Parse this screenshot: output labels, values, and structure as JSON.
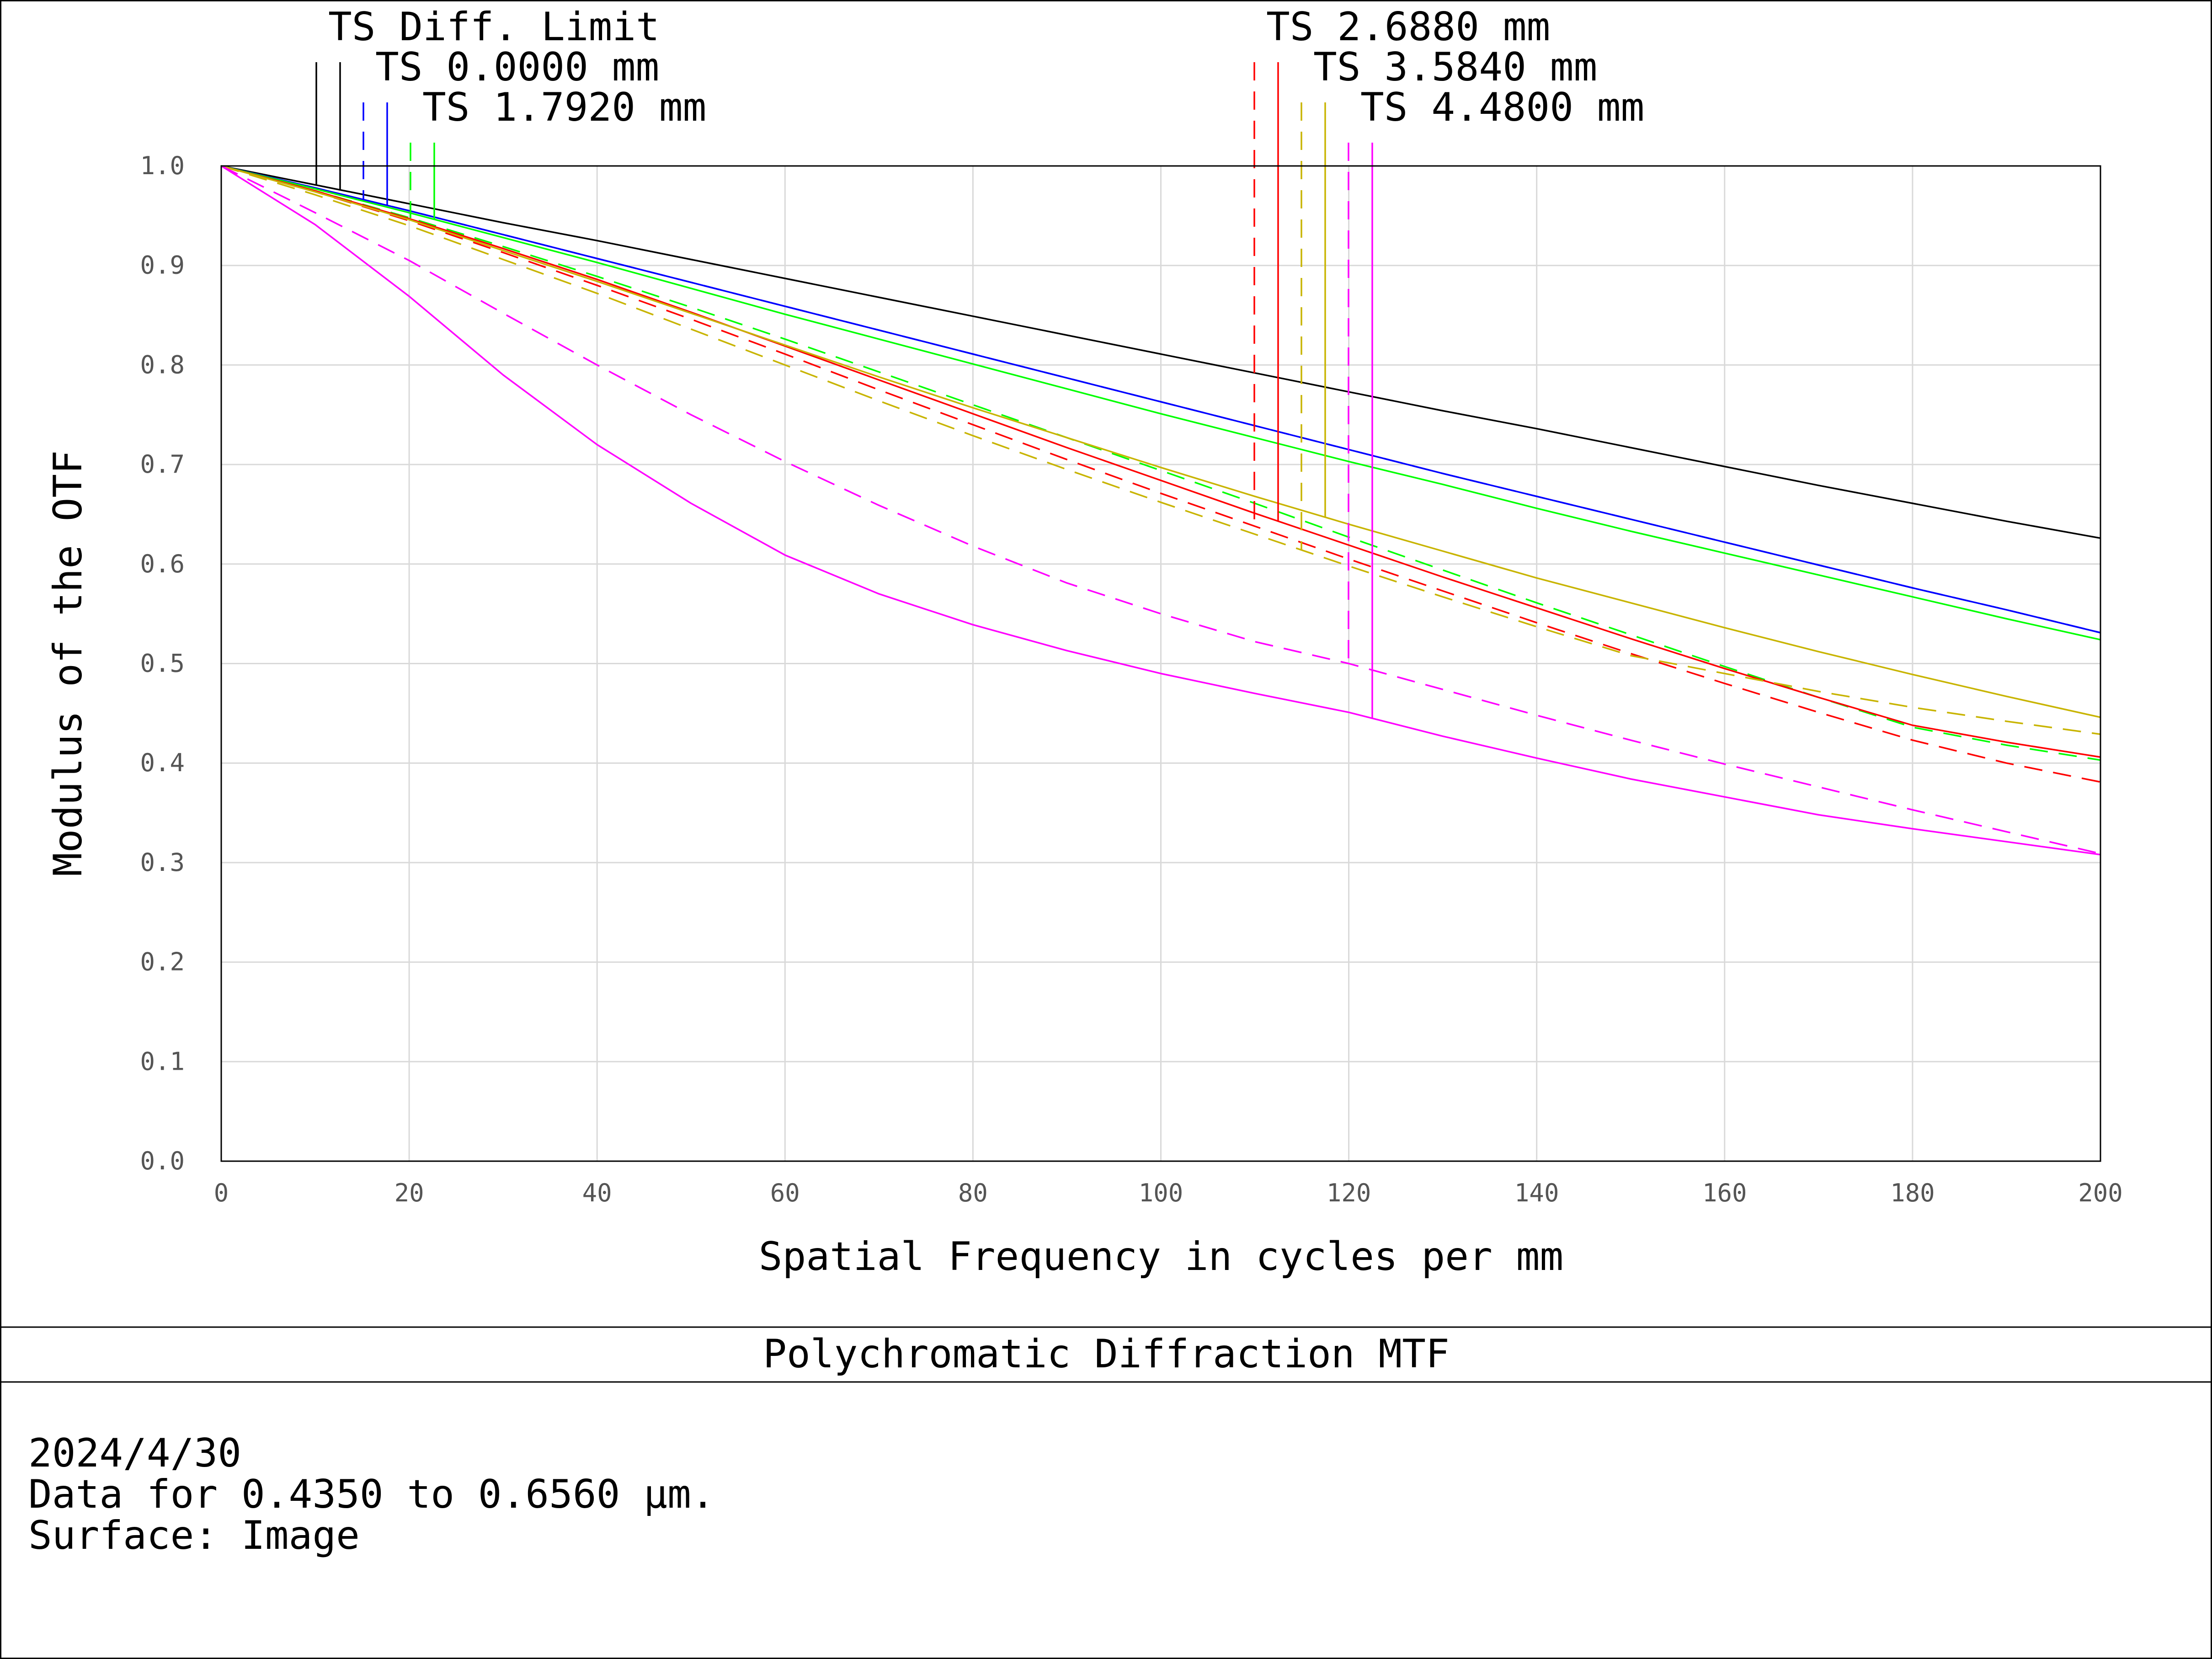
{
  "chart_data": {
    "type": "line",
    "title": "Polychromatic Diffraction MTF",
    "xlabel": "Spatial Frequency in cycles per mm",
    "ylabel": "Modulus of the OTF",
    "xlim": [
      0,
      200
    ],
    "ylim": [
      0,
      1.0
    ],
    "x_ticks": [
      "0",
      "20",
      "40",
      "60",
      "80",
      "100",
      "120",
      "140",
      "160",
      "180",
      "200"
    ],
    "y_ticks": [
      "0.0",
      "0.1",
      "0.2",
      "0.3",
      "0.4",
      "0.5",
      "0.6",
      "0.7",
      "0.8",
      "0.9",
      "1.0"
    ],
    "grid": true,
    "legend_placement": "top",
    "x": [
      0,
      10,
      20,
      30,
      40,
      50,
      60,
      70,
      80,
      90,
      100,
      110,
      120,
      130,
      140,
      150,
      160,
      170,
      180,
      190,
      200
    ],
    "series": [
      {
        "name": "TS Diff. Limit",
        "color": "#000000",
        "dash": "solid",
        "values": [
          1.0,
          0.981,
          0.962,
          0.943,
          0.925,
          0.906,
          0.887,
          0.868,
          0.849,
          0.83,
          0.811,
          0.792,
          0.773,
          0.754,
          0.736,
          0.717,
          0.698,
          0.679,
          0.661,
          0.643,
          0.626
        ]
      },
      {
        "name": "TS 0.0000 mm",
        "color": "#0000ff",
        "dash": "dashed",
        "values": [
          1.0,
          0.978,
          0.955,
          0.931,
          0.907,
          0.883,
          0.859,
          0.835,
          0.811,
          0.787,
          0.763,
          0.739,
          0.715,
          0.691,
          0.668,
          0.645,
          0.622,
          0.599,
          0.576,
          0.554,
          0.531
        ]
      },
      {
        "name": "TS 0.0000 mm",
        "color": "#0000ff",
        "dash": "solid",
        "values": [
          1.0,
          0.978,
          0.955,
          0.931,
          0.907,
          0.883,
          0.859,
          0.835,
          0.811,
          0.787,
          0.763,
          0.739,
          0.715,
          0.691,
          0.668,
          0.645,
          0.622,
          0.599,
          0.576,
          0.554,
          0.531
        ]
      },
      {
        "name": "TS 1.7920 mm",
        "color": "#00ff00",
        "dash": "dashed",
        "values": [
          1.0,
          0.975,
          0.948,
          0.919,
          0.889,
          0.858,
          0.826,
          0.793,
          0.76,
          0.727,
          0.694,
          0.661,
          0.627,
          0.594,
          0.561,
          0.529,
          0.497,
          0.466,
          0.436,
          0.418,
          0.403
        ]
      },
      {
        "name": "TS 1.7920 mm",
        "color": "#00ff00",
        "dash": "solid",
        "values": [
          1.0,
          0.977,
          0.953,
          0.928,
          0.903,
          0.877,
          0.851,
          0.826,
          0.801,
          0.776,
          0.751,
          0.727,
          0.703,
          0.68,
          0.656,
          0.633,
          0.611,
          0.589,
          0.567,
          0.545,
          0.524
        ]
      },
      {
        "name": "TS 2.6880 mm",
        "color": "#ff0000",
        "dash": "dashed",
        "values": [
          1.0,
          0.974,
          0.945,
          0.913,
          0.88,
          0.846,
          0.811,
          0.775,
          0.74,
          0.705,
          0.671,
          0.638,
          0.605,
          0.573,
          0.541,
          0.51,
          0.48,
          0.451,
          0.423,
          0.4,
          0.381
        ]
      },
      {
        "name": "TS 2.6880 mm",
        "color": "#ff0000",
        "dash": "solid",
        "values": [
          1.0,
          0.975,
          0.947,
          0.917,
          0.886,
          0.853,
          0.819,
          0.785,
          0.751,
          0.717,
          0.684,
          0.651,
          0.619,
          0.587,
          0.556,
          0.525,
          0.495,
          0.466,
          0.438,
          0.421,
          0.406
        ]
      },
      {
        "name": "TS 3.5840 mm",
        "color": "#c8b400",
        "dash": "dashed",
        "values": [
          1.0,
          0.971,
          0.94,
          0.906,
          0.872,
          0.836,
          0.8,
          0.764,
          0.729,
          0.695,
          0.662,
          0.63,
          0.598,
          0.567,
          0.537,
          0.508,
          0.49,
          0.472,
          0.456,
          0.442,
          0.429
        ]
      },
      {
        "name": "TS 3.5840 mm",
        "color": "#c8b400",
        "dash": "solid",
        "values": [
          1.0,
          0.974,
          0.946,
          0.915,
          0.884,
          0.852,
          0.82,
          0.788,
          0.757,
          0.727,
          0.697,
          0.668,
          0.64,
          0.613,
          0.586,
          0.561,
          0.536,
          0.512,
          0.489,
          0.467,
          0.446
        ]
      },
      {
        "name": "TS 4.4800 mm",
        "color": "#ff00ff",
        "dash": "dashed",
        "values": [
          1.0,
          0.953,
          0.905,
          0.852,
          0.8,
          0.75,
          0.703,
          0.659,
          0.618,
          0.581,
          0.55,
          0.522,
          0.5,
          0.474,
          0.448,
          0.423,
          0.399,
          0.376,
          0.353,
          0.331,
          0.309
        ]
      },
      {
        "name": "TS 4.4800 mm",
        "color": "#ff00ff",
        "dash": "solid",
        "values": [
          1.0,
          0.941,
          0.869,
          0.79,
          0.72,
          0.661,
          0.609,
          0.57,
          0.539,
          0.513,
          0.49,
          0.47,
          0.451,
          0.427,
          0.405,
          0.384,
          0.366,
          0.348,
          0.334,
          0.321,
          0.308
        ]
      }
    ],
    "legend_entries": [
      {
        "label": "TS Diff. Limit",
        "markers": [
          {
            "color": "#000000",
            "dash": "solid"
          },
          {
            "color": "#000000",
            "dash": "solid"
          }
        ]
      },
      {
        "label": "TS 0.0000 mm",
        "markers": [
          {
            "color": "#0000ff",
            "dash": "dashed"
          },
          {
            "color": "#0000ff",
            "dash": "solid"
          }
        ]
      },
      {
        "label": "TS 1.7920 mm",
        "markers": [
          {
            "color": "#00ff00",
            "dash": "dashed"
          },
          {
            "color": "#00ff00",
            "dash": "solid"
          }
        ]
      },
      {
        "label": "TS 2.6880 mm",
        "markers": [
          {
            "color": "#ff0000",
            "dash": "dashed"
          },
          {
            "color": "#ff0000",
            "dash": "solid"
          }
        ]
      },
      {
        "label": "TS 3.5840 mm",
        "markers": [
          {
            "color": "#c8b400",
            "dash": "dashed"
          },
          {
            "color": "#c8b400",
            "dash": "solid"
          }
        ]
      },
      {
        "label": "TS 4.4800 mm",
        "markers": [
          {
            "color": "#ff00ff",
            "dash": "dashed"
          },
          {
            "color": "#ff00ff",
            "dash": "solid"
          }
        ]
      }
    ]
  },
  "info": {
    "date": "2024/4/30",
    "data_range": "Data for 0.4350 to 0.6560 µm.",
    "surface": "Surface: Image"
  }
}
